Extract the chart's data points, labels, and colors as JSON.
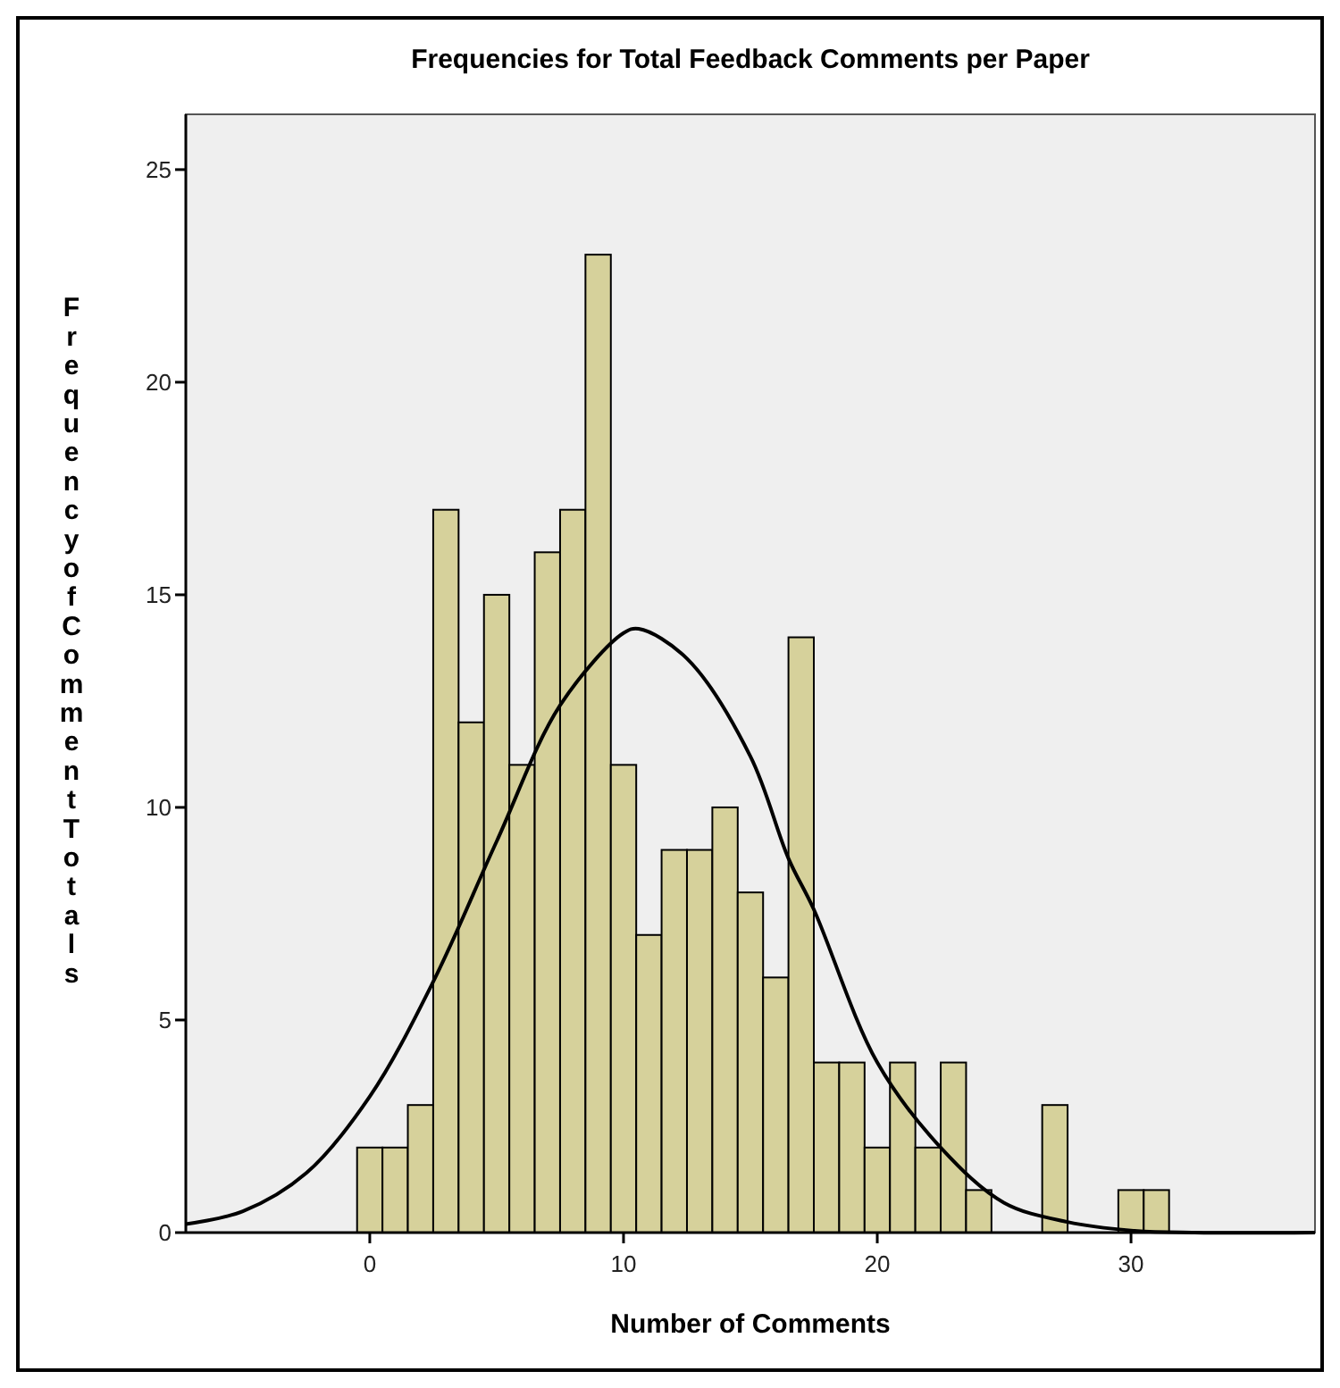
{
  "chart_data": {
    "type": "histogram",
    "title": "Frequencies for Total Feedback Comments per Paper",
    "xlabel": "Number of Comments",
    "ylabel": "Frequency of Comment Totals",
    "xlim": [
      -7.25,
      37.25
    ],
    "xticks": [
      0,
      10,
      20,
      30
    ],
    "ylim": [
      0,
      26.3
    ],
    "yticks": [
      0,
      5,
      10,
      15,
      20,
      25
    ],
    "series": [
      {
        "type": "histogram",
        "color": "#d6d19b",
        "bins": [
          -0.5,
          0.5,
          1.5,
          2.5,
          3.5,
          4.5,
          5.5,
          6.5,
          7.5,
          8.5,
          9.5,
          10.5,
          11.5,
          12.5,
          13.5,
          14.5,
          15.5,
          16.5,
          17.5,
          18.5,
          19.5,
          20.5,
          21.5,
          22.5,
          23.5,
          24.5,
          25.5,
          26.5,
          27.5,
          28.5,
          29.5,
          30.5,
          31.5
        ],
        "values": [
          2,
          2,
          3,
          17,
          12,
          15,
          11,
          16,
          17,
          23,
          11,
          7,
          9,
          9,
          10,
          8,
          6,
          14,
          4,
          4,
          2,
          4,
          2,
          4,
          1,
          0,
          0,
          3,
          0,
          0,
          1,
          1
        ]
      },
      {
        "type": "line",
        "color": "#000000",
        "x": [
          -7.25,
          -5,
          -2.5,
          0,
          2.5,
          5,
          7.5,
          10,
          10.6,
          12.5,
          15,
          16.5,
          17.5,
          20,
          22.5,
          25,
          27.5,
          30,
          32.5,
          37.25
        ],
        "values": [
          0.2,
          0.5,
          1.4,
          3.2,
          5.9,
          9.2,
          12.4,
          14.1,
          14.2,
          13.5,
          11.2,
          8.8,
          7.6,
          4.0,
          2.0,
          0.7,
          0.25,
          0.05,
          0,
          0
        ]
      }
    ]
  }
}
